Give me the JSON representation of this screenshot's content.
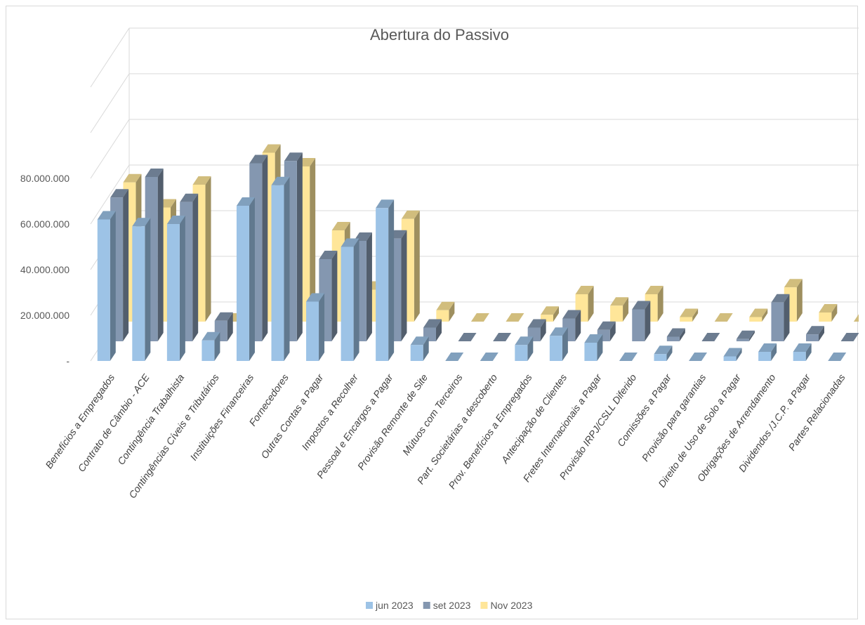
{
  "chart_data": {
    "type": "bar",
    "title": "Abertura do Passivo",
    "xlabel": "",
    "ylabel": "",
    "ylim": [
      0,
      80000000
    ],
    "yticks": [
      {
        "value": 0,
        "label": "-"
      },
      {
        "value": 20000000,
        "label": "20.000.000"
      },
      {
        "value": 40000000,
        "label": "40.000.000"
      },
      {
        "value": 60000000,
        "label": "60.000.000"
      },
      {
        "value": 80000000,
        "label": "80.000.000"
      }
    ],
    "grid": true,
    "legend_position": "bottom",
    "categories": [
      "Benefícios a Empregados",
      "Contrato de Câmbio - ACE",
      "Contingência Trabalhista",
      "Contingências Cíveis e Tributários",
      "Instituições Financeiras",
      "Fornecedores",
      "Outras Contas a Pagar",
      "Impostos a Recolher",
      "Pessoal e Encargos a Pagar",
      "Provisão Remonte de Site",
      "Mútuos com Terceiros",
      "Part. Societárias a descoberto",
      "Prov. Benefícios a Empregados",
      "Antecipação de Clientes",
      "Fretes Internacionais a Pagar",
      "Provisão IRPJ/CSLL Diferido",
      "Comissões a Pagar",
      "Provisão para garantias",
      "Direito de Uso de Solo a Pagar",
      "Obrigações de Arrendamento",
      "Dividendos /J.C.P. a Pagar",
      "Partes Relacionadas"
    ],
    "series": [
      {
        "name": "jun 2023",
        "color": "#9dc3e6",
        "values": [
          62000000,
          59000000,
          60000000,
          9000000,
          68000000,
          77000000,
          26000000,
          50000000,
          67000000,
          7000000,
          0,
          0,
          7000000,
          11000000,
          8000000,
          0,
          3000000,
          0,
          2000000,
          4000000,
          4000000,
          0
        ]
      },
      {
        "name": "set 2023",
        "color": "#8497b0",
        "values": [
          63000000,
          72000000,
          61000000,
          9000000,
          78000000,
          79000000,
          36000000,
          44000000,
          45000000,
          6000000,
          0,
          0,
          6000000,
          10000000,
          5000000,
          14000000,
          2000000,
          0,
          1000000,
          17000000,
          3000000,
          0
        ]
      },
      {
        "name": "Nov 2023",
        "color": "#ffe699",
        "values": [
          61000000,
          50000000,
          60000000,
          0,
          74000000,
          68000000,
          40000000,
          14000000,
          45000000,
          5000000,
          0,
          0,
          3000000,
          12000000,
          7000000,
          12000000,
          2000000,
          0,
          2000000,
          15000000,
          4000000,
          0
        ]
      }
    ]
  }
}
